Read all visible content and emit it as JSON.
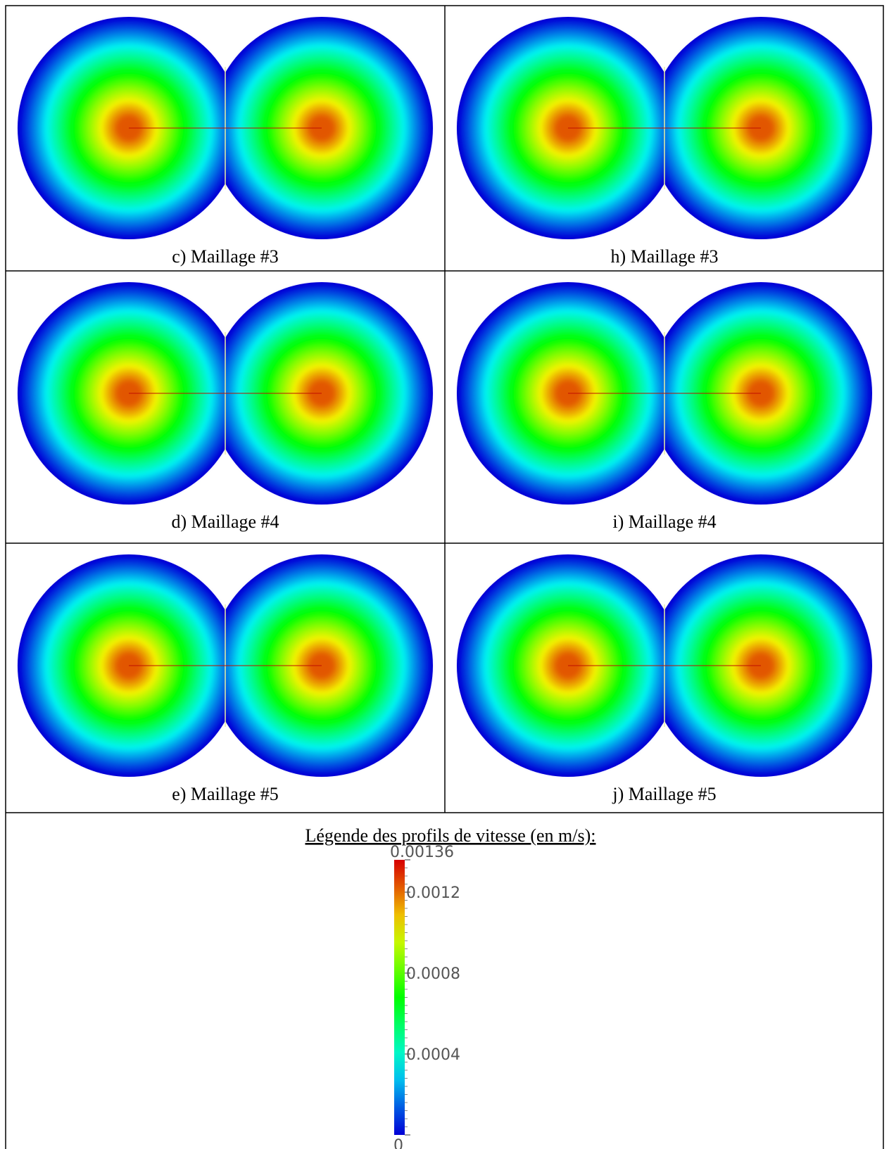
{
  "panels": [
    {
      "caption": "c) Maillage #3"
    },
    {
      "caption": "h) Maillage #3"
    },
    {
      "caption": "d) Maillage #4"
    },
    {
      "caption": "i) Maillage #4"
    },
    {
      "caption": "e) Maillage #5"
    },
    {
      "caption": "j) Maillage #5"
    }
  ],
  "legend": {
    "title": "Légende des profils de vitesse (en m/s):",
    "colorbar": {
      "range": [
        0,
        0.00136
      ],
      "ticks": [
        0,
        0.0004,
        0.0008,
        0.0012,
        0.00136
      ]
    }
  }
}
